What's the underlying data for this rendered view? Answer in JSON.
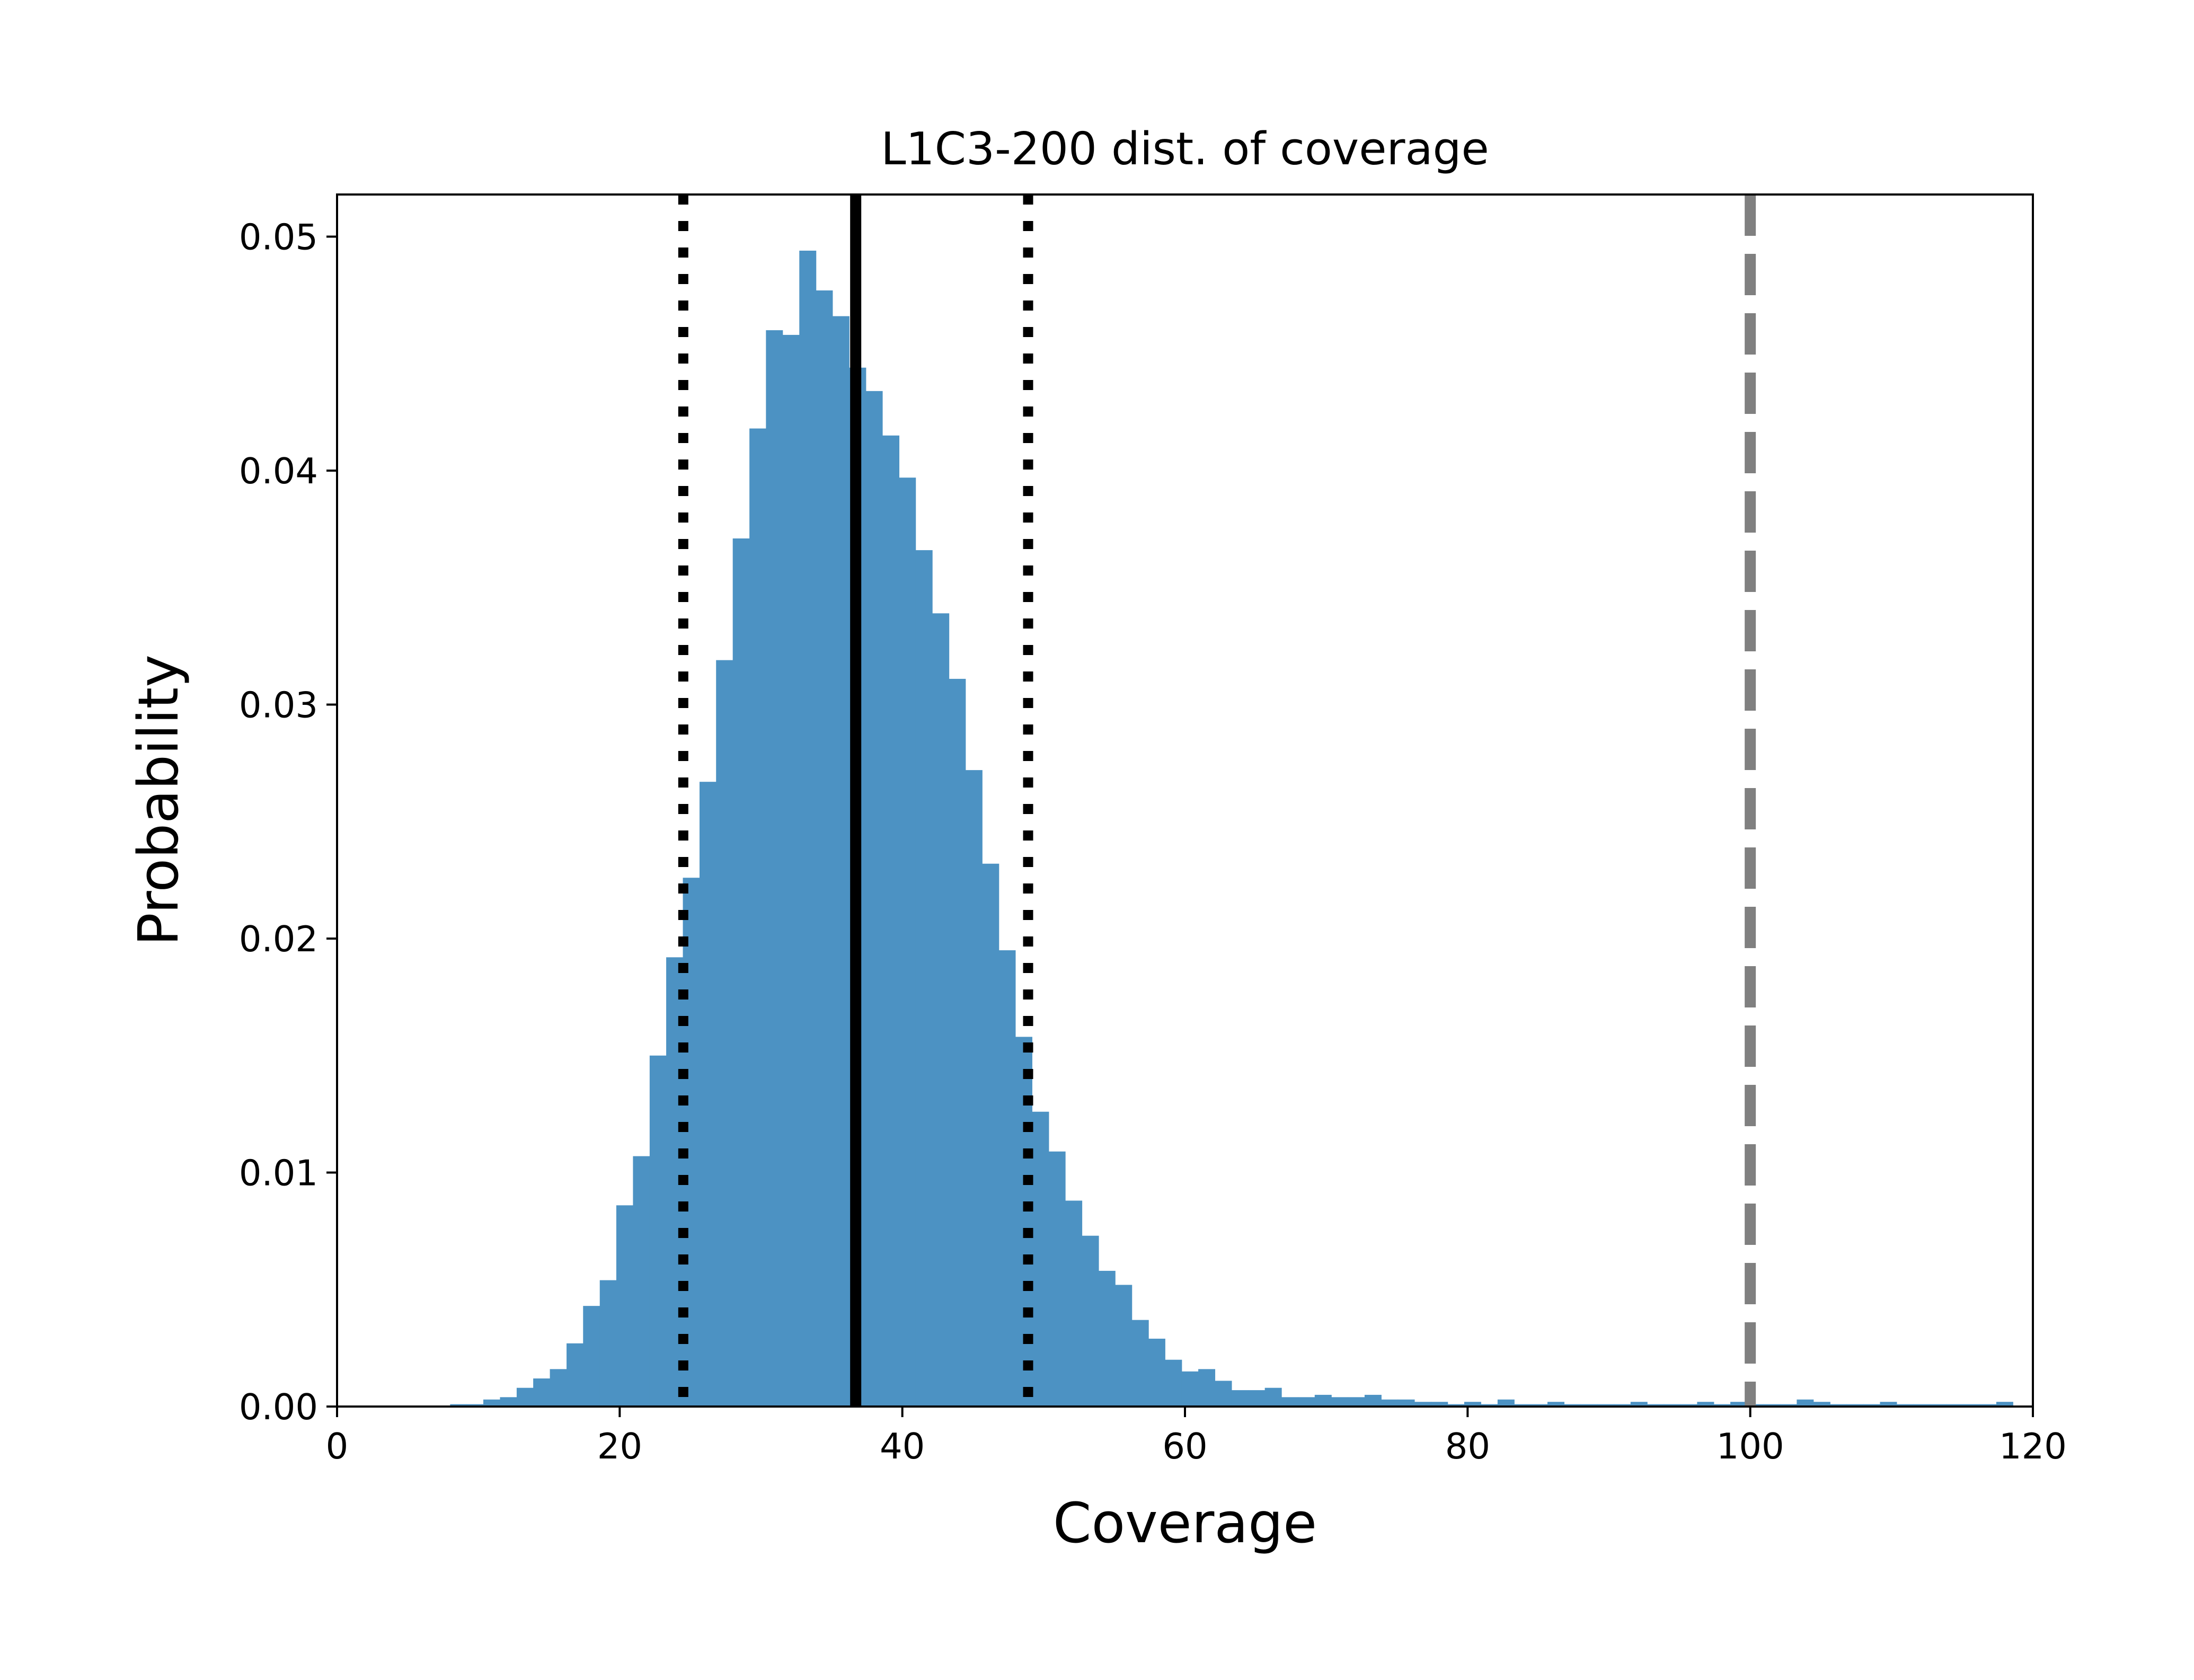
{
  "chart_data": {
    "type": "bar",
    "title": "L1C3-200 dist. of coverage",
    "xlabel": "Coverage",
    "ylabel": "Probability",
    "xlim": [
      0,
      120
    ],
    "ylim": [
      0,
      0.0518
    ],
    "xticks": [
      0,
      20,
      40,
      60,
      80,
      100,
      120
    ],
    "xtick_labels": [
      "0",
      "20",
      "40",
      "60",
      "80",
      "100",
      "120"
    ],
    "yticks": [
      0,
      0.01,
      0.02,
      0.03,
      0.04,
      0.05
    ],
    "ytick_labels": [
      "0.00",
      "0.01",
      "0.02",
      "0.03",
      "0.04",
      "0.05"
    ],
    "grid": false,
    "bar_color": "#4c92c3",
    "bin_width": 1.1765,
    "bins": {
      "x": [
        8.0,
        9.18,
        10.35,
        11.53,
        12.71,
        13.88,
        15.06,
        16.24,
        17.41,
        18.59,
        19.76,
        20.94,
        22.12,
        23.29,
        24.47,
        25.65,
        26.82,
        28.0,
        29.18,
        30.35,
        31.53,
        32.71,
        33.88,
        35.06,
        36.24,
        37.41,
        38.59,
        39.76,
        40.94,
        42.12,
        43.29,
        44.47,
        45.65,
        46.82,
        48.0,
        49.18,
        50.35,
        51.53,
        52.71,
        53.88,
        55.06,
        56.24,
        57.41,
        58.59,
        59.76,
        60.94,
        62.12,
        63.29,
        64.47,
        65.65,
        66.82,
        68.0,
        69.18,
        70.35,
        71.53,
        72.71,
        73.88,
        75.06,
        76.24,
        77.41,
        78.59,
        79.76,
        80.94,
        82.12,
        83.29,
        84.47,
        85.65,
        86.82,
        88.0,
        89.18,
        90.35,
        91.53,
        92.71,
        93.88,
        95.06,
        96.24,
        97.41,
        98.59,
        99.76,
        100.94,
        102.12,
        103.29,
        104.47,
        105.65,
        106.82,
        108.0,
        109.18,
        110.35,
        111.53,
        112.71,
        113.88,
        115.06,
        116.24,
        117.41
      ],
      "y": [
        0.0001,
        0.0001,
        0.0003,
        0.0004,
        0.0008,
        0.0012,
        0.0016,
        0.0027,
        0.0043,
        0.0054,
        0.0086,
        0.0107,
        0.015,
        0.0192,
        0.0226,
        0.0267,
        0.0319,
        0.0371,
        0.0418,
        0.046,
        0.0458,
        0.0494,
        0.0477,
        0.0466,
        0.0444,
        0.0434,
        0.0415,
        0.0397,
        0.0366,
        0.0339,
        0.0311,
        0.0272,
        0.0232,
        0.0195,
        0.0158,
        0.0126,
        0.0109,
        0.0088,
        0.0073,
        0.0058,
        0.0052,
        0.0037,
        0.0029,
        0.002,
        0.0015,
        0.0016,
        0.0011,
        0.0007,
        0.0007,
        0.0008,
        0.0004,
        0.0004,
        0.0005,
        0.0004,
        0.0004,
        0.0005,
        0.0003,
        0.0003,
        0.0002,
        0.0002,
        0.0001,
        0.0002,
        0.0001,
        0.0003,
        0.0001,
        0.0001,
        0.0002,
        0.0001,
        0.0001,
        0.0001,
        0.0001,
        0.0002,
        0.0001,
        0.0001,
        0.0001,
        0.0002,
        0.0001,
        0.0002,
        0.0001,
        0.0001,
        0.0001,
        0.0003,
        0.0002,
        0.0001,
        0.0001,
        0.0001,
        0.0002,
        0.0001,
        0.0001,
        0.0001,
        0.0001,
        0.0001,
        0.0001,
        0.0002
      ]
    },
    "reference_lines": [
      {
        "x": 24.5,
        "style": "dotted",
        "color": "#000000"
      },
      {
        "x": 36.7,
        "style": "solid",
        "color": "#000000"
      },
      {
        "x": 48.9,
        "style": "dotted",
        "color": "#000000"
      },
      {
        "x": 100.0,
        "style": "dashed",
        "color": "#808080"
      }
    ]
  }
}
